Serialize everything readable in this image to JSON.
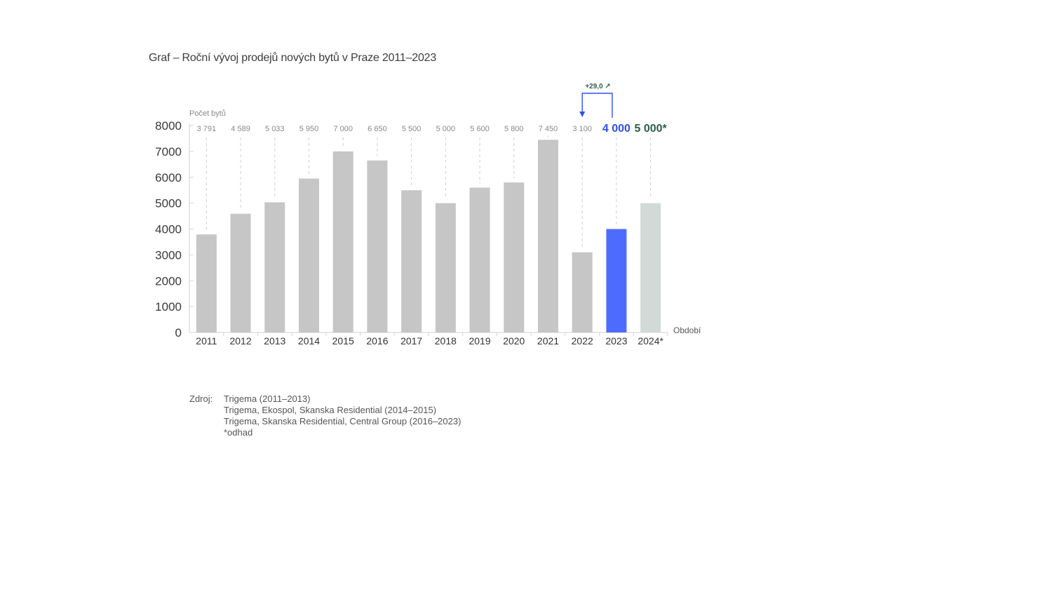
{
  "chart_data": {
    "type": "bar",
    "title": "Graf – Roční vývoj prodejů nových bytů v Praze 2011–2023",
    "ylabel": "Počet bytů",
    "xlabel": "Období",
    "ylim": [
      0,
      8000
    ],
    "yticks": [
      "8000",
      "7000",
      "6000",
      "5000",
      "4000",
      "3000",
      "2000",
      "1000",
      "0"
    ],
    "grid": false,
    "categories": [
      "2011",
      "2012",
      "2013",
      "2014",
      "2015",
      "2016",
      "2017",
      "2018",
      "2019",
      "2020",
      "2021",
      "2022",
      "2023",
      "2024*"
    ],
    "values": [
      3791,
      4589,
      5033,
      5950,
      7000,
      6650,
      5500,
      5000,
      5600,
      5800,
      7450,
      3100,
      4000,
      5000
    ],
    "value_labels": [
      "3 791",
      "4 589",
      "5 033",
      "5 950",
      "7 000",
      "6 650",
      "5 500",
      "5 000",
      "5 600",
      "5 800",
      "7 450",
      "3 100",
      "4 000",
      "5 000*"
    ],
    "bar_colors": [
      "#c6c6c6",
      "#c6c6c6",
      "#c6c6c6",
      "#c6c6c6",
      "#c6c6c6",
      "#c6c6c6",
      "#c6c6c6",
      "#c6c6c6",
      "#c6c6c6",
      "#c6c6c6",
      "#c6c6c6",
      "#c6c6c6",
      "#4e6bff",
      "#d2dad7"
    ],
    "label_colors": [
      "#888888",
      "#888888",
      "#888888",
      "#888888",
      "#888888",
      "#888888",
      "#888888",
      "#888888",
      "#888888",
      "#888888",
      "#888888",
      "#888888",
      "#2f4ff0",
      "#2e5e45"
    ],
    "annotation": {
      "text": "+29,0 ↗",
      "color": "#2e5e45",
      "arrow_color": "#2f4ff0",
      "from": "2023",
      "to": "2022"
    }
  },
  "source": {
    "label": "Zdroj:",
    "lines": [
      "Trigema (2011–2013)",
      "Trigema, Ekospol, Skanska Residential (2014–2015)",
      "Trigema, Skanska Residential, Central Group (2016–2023)",
      "*odhad"
    ]
  }
}
